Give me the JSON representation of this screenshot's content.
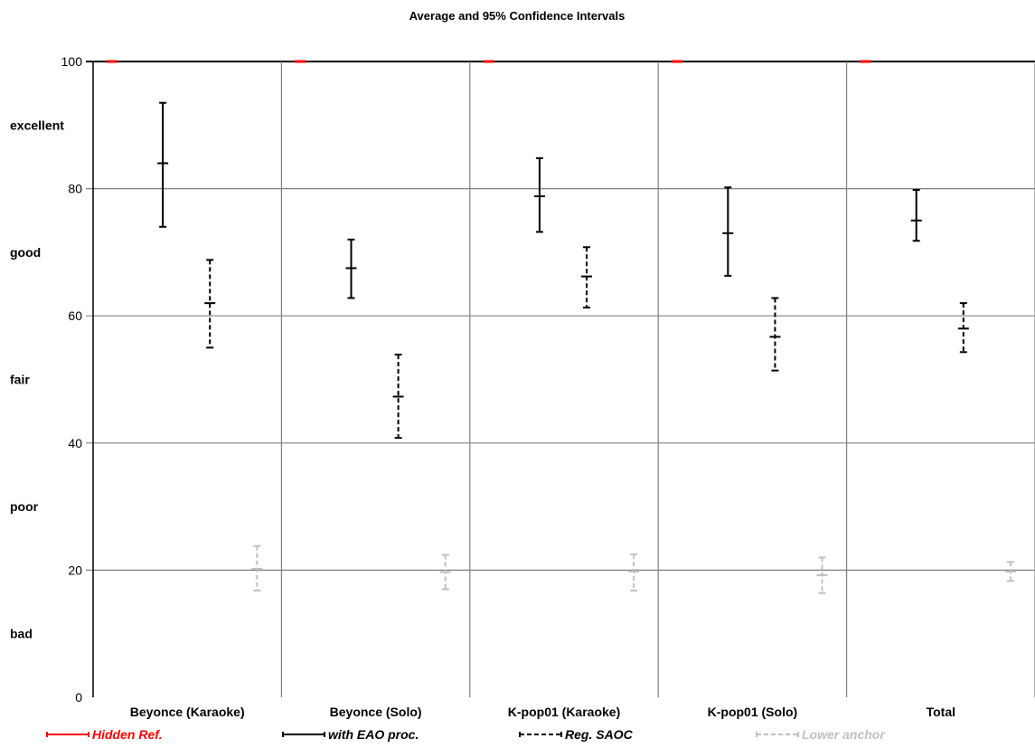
{
  "chart_data": {
    "type": "errorbar",
    "title": "Average and 95% Confidence Intervals",
    "ylim": [
      0,
      100
    ],
    "y_ticks": [
      0,
      20,
      40,
      60,
      80,
      100
    ],
    "quality_labels": [
      {
        "text": "excellent",
        "value": 90
      },
      {
        "text": "good",
        "value": 70
      },
      {
        "text": "fair",
        "value": 50
      },
      {
        "text": "poor",
        "value": 30
      },
      {
        "text": "bad",
        "value": 10
      }
    ],
    "grid": true,
    "legend_placement": "bottom",
    "categories": [
      "Beyonce (Karaoke)",
      "Beyonce (Solo)",
      "K-pop01 (Karaoke)",
      "K-pop01 (Solo)",
      "Total"
    ],
    "series": [
      {
        "name": "Hidden Ref.",
        "color": "#ff0000",
        "style": "solid",
        "mean": [
          100,
          100,
          100,
          100,
          100
        ],
        "lower": [
          100,
          100,
          100,
          100,
          100
        ],
        "upper": [
          100,
          100,
          100,
          100,
          100
        ]
      },
      {
        "name": "with EAO proc.",
        "color": "#000000",
        "style": "solid",
        "mean": [
          84,
          67.5,
          78.8,
          73,
          75
        ],
        "lower": [
          74,
          62.8,
          73.2,
          66.3,
          71.8
        ],
        "upper": [
          93.5,
          72,
          84.8,
          80.2,
          79.8
        ]
      },
      {
        "name": "Reg. SAOC",
        "color": "#000000",
        "style": "dashed",
        "mean": [
          62,
          47.3,
          66.2,
          56.7,
          58
        ],
        "lower": [
          55,
          40.8,
          61.3,
          51.4,
          54.3
        ],
        "upper": [
          68.8,
          53.9,
          70.8,
          62.8,
          62
        ]
      },
      {
        "name": "Lower anchor",
        "color": "#c0c0c0",
        "style": "dashed",
        "mean": [
          20.2,
          19.7,
          19.8,
          19.2,
          19.8
        ],
        "lower": [
          16.8,
          17,
          16.8,
          16.4,
          18.3
        ],
        "upper": [
          23.8,
          22.4,
          22.5,
          22,
          21.3
        ]
      }
    ]
  }
}
